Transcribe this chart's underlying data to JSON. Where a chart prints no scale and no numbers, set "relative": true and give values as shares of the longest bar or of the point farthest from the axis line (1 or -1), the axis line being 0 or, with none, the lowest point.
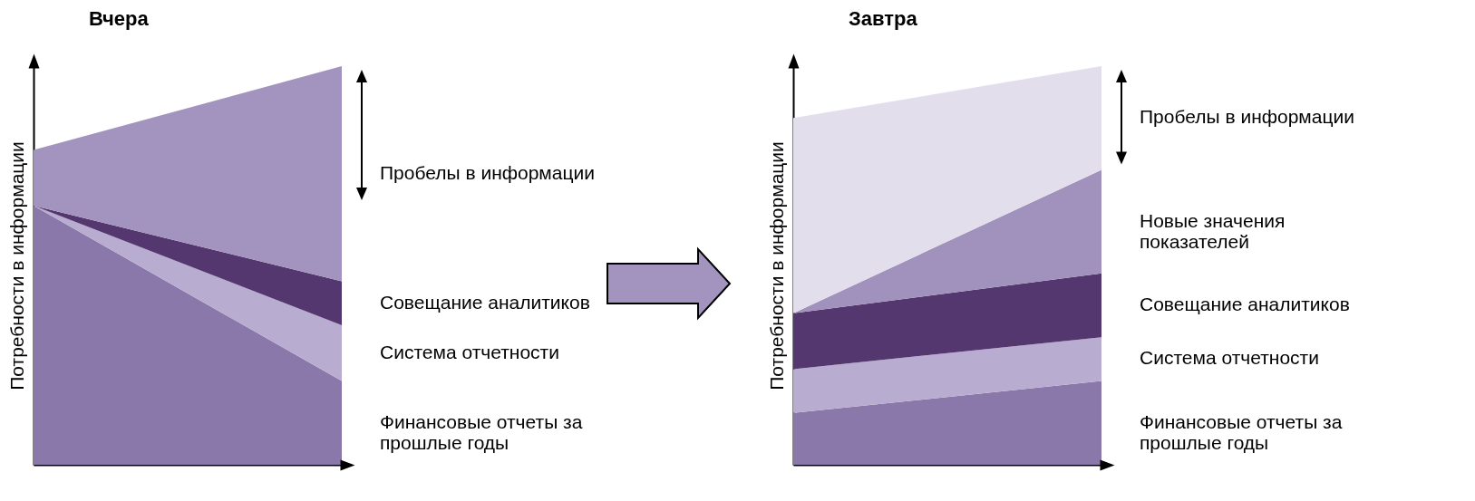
{
  "chart_data": [
    {
      "type": "area",
      "title": "Вчера",
      "ylabel": "Потребности в информации",
      "categories": [
        null,
        null
      ],
      "relative": true,
      "stacked": true,
      "legend": false,
      "series": [
        {
          "name": "Финансовые отчеты за прошлые годы",
          "color": "#8b78ab",
          "values": [
            0.65,
            0.21
          ]
        },
        {
          "name": "Система отчетности",
          "color": "#b8add0",
          "values": [
            0,
            0.14
          ]
        },
        {
          "name": "Совещание аналитиков",
          "color": "#553770",
          "values": [
            0,
            0.11
          ]
        },
        {
          "name": "Пробелы в информации",
          "color": "#a393bf",
          "values": [
            0.14,
            0.54
          ]
        }
      ]
    },
    {
      "type": "area",
      "title": "Завтра",
      "ylabel": "Потребности в информации",
      "categories": [
        null,
        null
      ],
      "relative": true,
      "stacked": true,
      "legend": false,
      "series": [
        {
          "name": "Финансовые отчеты за прошлые годы",
          "color": "#8b78ab",
          "values": [
            0.13,
            0.21
          ]
        },
        {
          "name": "Система отчетности",
          "color": "#b8add0",
          "values": [
            0.11,
            0.11
          ]
        },
        {
          "name": "Совещание аналитиков",
          "color": "#553770",
          "values": [
            0.14,
            0.16
          ]
        },
        {
          "name": "Новые значения показателей",
          "color": "#a092bd",
          "values": [
            0,
            0.26
          ]
        },
        {
          "name": "Пробелы в информации",
          "color": "#e3deec",
          "values": [
            0.49,
            0.26
          ]
        }
      ]
    }
  ]
}
